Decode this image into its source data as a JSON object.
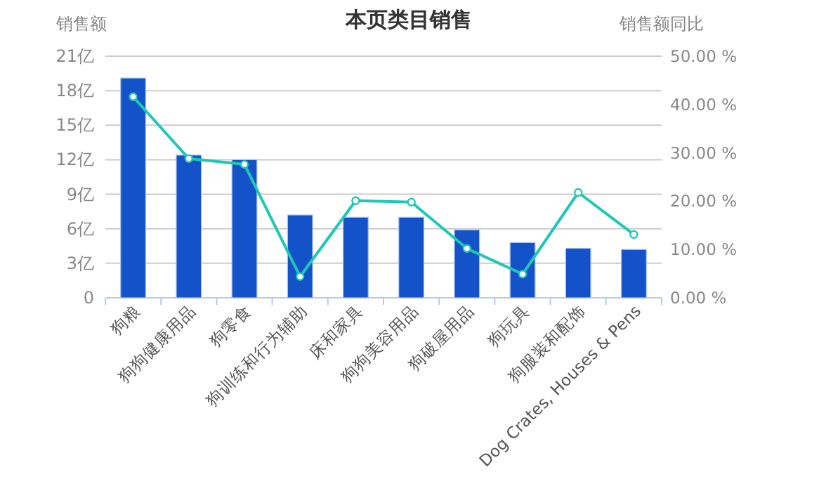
{
  "chart_data": {
    "type": "bar",
    "title": "本页类目销售",
    "ylabel": "销售额",
    "y2label": "销售额同比",
    "categories": [
      "狗粮",
      "狗狗健康用品",
      "狗零食",
      "狗训练和行为辅助",
      "床和家具",
      "狗狗美容用品",
      "狗破屋用品",
      "狗玩具",
      "狗服装和配饰",
      "Dog Crates, Houses & Pens"
    ],
    "series": [
      {
        "color": "#1352c8",
        "values": [
          19.1,
          12.4,
          12.0,
          7.2,
          7.0,
          7.0,
          5.9,
          4.8,
          4.3,
          4.2
        ]
      },
      {
        "type": "line",
        "axis": "y2",
        "color": "#1fc8b4",
        "marker": "circle",
        "values": [
          41.6,
          28.8,
          27.6,
          4.4,
          20.1,
          19.8,
          10.2,
          4.9,
          21.8,
          13.1
        ]
      }
    ],
    "ylim": [
      0,
      21
    ],
    "yticks": [
      0,
      {
        "value": 3,
        "label": "3亿"
      },
      {
        "value": 6,
        "label": "6亿"
      },
      {
        "value": 9,
        "label": "9亿"
      },
      {
        "value": 12,
        "label": "12亿"
      },
      {
        "value": 15,
        "label": "15亿"
      },
      {
        "value": 18,
        "label": "18亿"
      },
      {
        "value": 21,
        "label": "21亿"
      }
    ],
    "y2lim": [
      0,
      50
    ],
    "y2ticks": [
      {
        "value": 0,
        "label": "0.00 %"
      },
      {
        "value": 10,
        "label": "10.00 %"
      },
      {
        "value": 20,
        "label": "20.00 %"
      },
      {
        "value": 30,
        "label": "30.00 %"
      },
      {
        "value": 40,
        "label": "40.00 %"
      },
      {
        "value": 50,
        "label": "50.00 %"
      }
    ],
    "grid": "y"
  }
}
